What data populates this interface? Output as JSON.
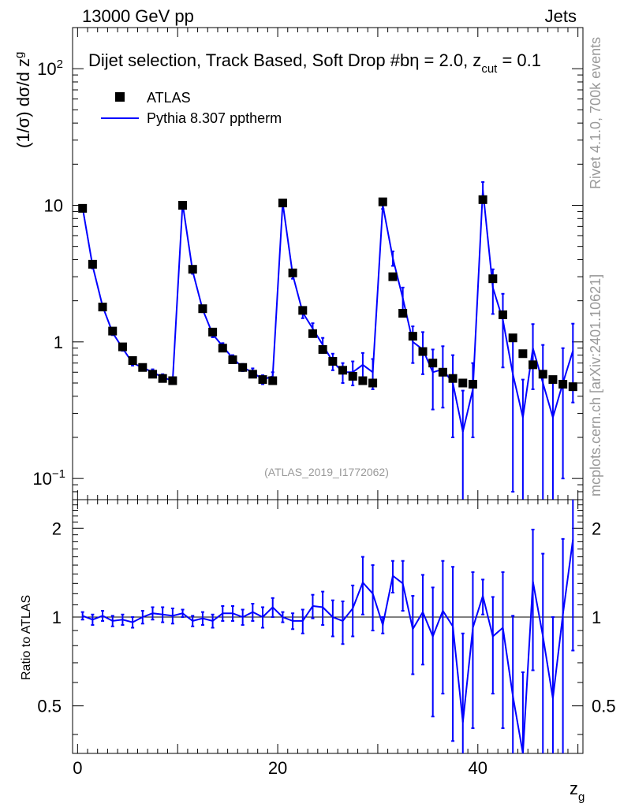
{
  "header": {
    "left": "13000 GeV pp",
    "right": "Jets"
  },
  "side": {
    "rivet": "Rivet 4.1.0,  700k events",
    "mcplots": "mcplots.cern.ch [arXiv:2401.10621]"
  },
  "colors": {
    "mc": "#0000ff",
    "data": "#000000",
    "watermark": "#999999"
  },
  "chart_data": [
    {
      "type": "line",
      "title": "Dijet selection, Track Based, Soft Drop #bη = 2.0, z_cut = 0.1",
      "title_main": "Dijet selection, Track Based, Soft Drop #bη = 2.0, z",
      "title_sub": "cut",
      "title_end": " = 0.1",
      "ylabel": "(1/σ) dσ/d z_g",
      "ylabel_main": "(1/σ) dσ/d z",
      "ylabel_sub": "g",
      "yscale": "log",
      "ylim": [
        0.07,
        200
      ],
      "xlim": [
        -0.5,
        50.5
      ],
      "yticks": [
        {
          "value": 0.1,
          "label": "10",
          "exp": "−1"
        },
        {
          "value": 1,
          "label": "1",
          "exp": ""
        },
        {
          "value": 10,
          "label": "10",
          "exp": ""
        },
        {
          "value": 100,
          "label": "10",
          "exp": "2"
        }
      ],
      "watermark": "(ATLAS_2019_I1772062)",
      "legend": [
        {
          "name": "ATLAS",
          "marker": "square"
        },
        {
          "name": "Pythia 8.307 pptherm",
          "marker": "line"
        }
      ],
      "legend_position": "top-left",
      "x": [
        0.5,
        1.5,
        2.5,
        3.5,
        4.5,
        5.5,
        6.5,
        7.5,
        8.5,
        9.5,
        10.5,
        11.5,
        12.5,
        13.5,
        14.5,
        15.5,
        16.5,
        17.5,
        18.5,
        19.5,
        20.5,
        21.5,
        22.5,
        23.5,
        24.5,
        25.5,
        26.5,
        27.5,
        28.5,
        29.5,
        30.5,
        31.5,
        32.5,
        33.5,
        34.5,
        35.5,
        36.5,
        37.5,
        38.5,
        39.5,
        40.5,
        41.5,
        42.5,
        43.5,
        44.5,
        45.5,
        46.5,
        47.5,
        48.5,
        49.5
      ],
      "series": [
        {
          "name": "ATLAS",
          "style": "markers",
          "values": [
            9.5,
            3.7,
            1.8,
            1.2,
            0.92,
            0.73,
            0.65,
            0.58,
            0.54,
            0.52,
            10.0,
            3.4,
            1.75,
            1.18,
            0.9,
            0.74,
            0.65,
            0.58,
            0.53,
            0.52,
            10.4,
            3.2,
            1.7,
            1.15,
            0.88,
            0.72,
            0.62,
            0.56,
            0.52,
            0.5,
            10.6,
            3.0,
            1.62,
            1.1,
            0.85,
            0.7,
            0.6,
            0.54,
            0.5,
            0.49,
            11.0,
            2.9,
            1.58,
            1.07,
            0.82,
            0.68,
            0.58,
            0.53,
            0.49,
            0.47
          ]
        },
        {
          "name": "Pythia 8.307 pptherm",
          "style": "line",
          "values": [
            9.6,
            3.6,
            1.82,
            1.17,
            0.9,
            0.7,
            0.65,
            0.6,
            0.55,
            0.52,
            10.3,
            3.3,
            1.73,
            1.14,
            0.93,
            0.76,
            0.65,
            0.6,
            0.53,
            0.56,
            10.4,
            3.1,
            1.64,
            1.25,
            0.95,
            0.72,
            0.6,
            0.6,
            0.68,
            0.6,
            10.0,
            4.1,
            2.1,
            1.0,
            0.88,
            0.6,
            0.63,
            0.5,
            0.22,
            0.45,
            13.0,
            2.5,
            1.45,
            0.58,
            0.28,
            0.9,
            0.5,
            0.28,
            0.5,
            0.86
          ]
        }
      ],
      "mc_err": [
        0.25,
        0.15,
        0.08,
        0.05,
        0.04,
        0.03,
        0.03,
        0.03,
        0.03,
        0.03,
        0.3,
        0.15,
        0.08,
        0.06,
        0.05,
        0.04,
        0.04,
        0.04,
        0.04,
        0.04,
        0.4,
        0.2,
        0.15,
        0.12,
        0.12,
        0.1,
        0.1,
        0.12,
        0.15,
        0.15,
        0.6,
        0.5,
        0.4,
        0.3,
        0.3,
        0.28,
        0.3,
        0.3,
        0.22,
        0.25,
        1.8,
        0.9,
        0.8,
        0.5,
        0.25,
        0.45,
        0.45,
        0.25,
        0.4,
        0.5
      ]
    },
    {
      "type": "line",
      "ylabel": "Ratio to ATLAS",
      "xlabel": "z_g",
      "xlabel_main": "z",
      "xlabel_sub": "g",
      "yscale": "log",
      "ylim": [
        0.345,
        2.5
      ],
      "xlim": [
        -0.5,
        50.5
      ],
      "yticks": [
        {
          "value": 0.5,
          "label": "0.5"
        },
        {
          "value": 1,
          "label": "1"
        },
        {
          "value": 2,
          "label": "2"
        }
      ],
      "xticks": [
        0,
        20,
        40
      ],
      "reference": 1,
      "series": [
        {
          "name": "Pythia 8.307 pptherm / ATLAS",
          "values": [
            1.01,
            0.98,
            1.01,
            0.97,
            0.98,
            0.96,
            1.0,
            1.03,
            1.02,
            1.01,
            1.03,
            0.97,
            0.99,
            0.97,
            1.03,
            1.03,
            1.0,
            1.04,
            1.0,
            1.08,
            1.0,
            0.97,
            0.97,
            1.09,
            1.08,
            1.0,
            0.97,
            1.07,
            1.31,
            1.2,
            0.94,
            1.38,
            1.3,
            0.91,
            1.04,
            0.86,
            1.05,
            0.93,
            0.44,
            0.92,
            1.18,
            0.86,
            0.92,
            0.54,
            0.34,
            1.32,
            0.86,
            0.53,
            1.02,
            1.83
          ]
        }
      ],
      "errors": [
        0.03,
        0.04,
        0.04,
        0.04,
        0.04,
        0.04,
        0.05,
        0.05,
        0.06,
        0.06,
        0.03,
        0.04,
        0.05,
        0.05,
        0.06,
        0.06,
        0.06,
        0.07,
        0.08,
        0.08,
        0.04,
        0.06,
        0.09,
        0.1,
        0.14,
        0.14,
        0.16,
        0.21,
        0.29,
        0.3,
        0.06,
        0.17,
        0.25,
        0.27,
        0.35,
        0.4,
        0.5,
        0.55,
        0.44,
        0.5,
        0.16,
        0.31,
        0.5,
        0.47,
        0.31,
        0.66,
        0.78,
        0.47,
        0.82,
        1.06
      ]
    }
  ]
}
